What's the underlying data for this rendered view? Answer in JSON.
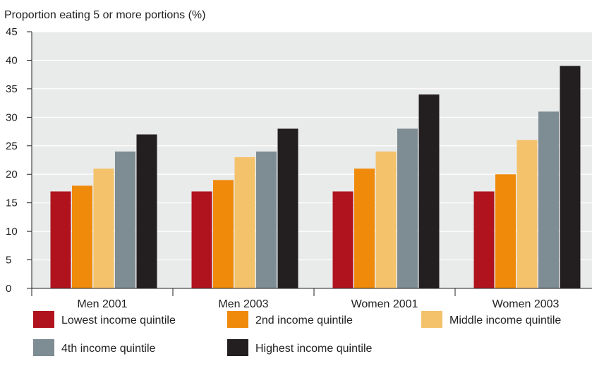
{
  "chart_data": {
    "type": "bar",
    "title": "",
    "ylabel": "Proportion eating 5 or more portions (%)",
    "xlabel": "",
    "ylim": [
      0,
      45
    ],
    "yticks": [
      0,
      5,
      10,
      15,
      20,
      25,
      30,
      35,
      40,
      45
    ],
    "grid": true,
    "legend_position": "bottom",
    "categories": [
      "Men 2001",
      "Men 2003",
      "Women 2001",
      "Women 2003"
    ],
    "series": [
      {
        "name": "Lowest income quintile",
        "color": "#B0131E",
        "values": [
          17,
          17,
          17,
          17
        ]
      },
      {
        "name": "2nd income quintile",
        "color": "#EF8A0B",
        "values": [
          18,
          19,
          21,
          20
        ]
      },
      {
        "name": "Middle income quintile",
        "color": "#F4C26B",
        "values": [
          21,
          23,
          24,
          26
        ]
      },
      {
        "name": "4th income quintile",
        "color": "#7E8C93",
        "values": [
          24,
          24,
          28,
          31
        ]
      },
      {
        "name": "Highest income quintile",
        "color": "#231F20",
        "values": [
          27,
          28,
          34,
          39
        ]
      }
    ],
    "plot_background": "#E9EAEA"
  }
}
